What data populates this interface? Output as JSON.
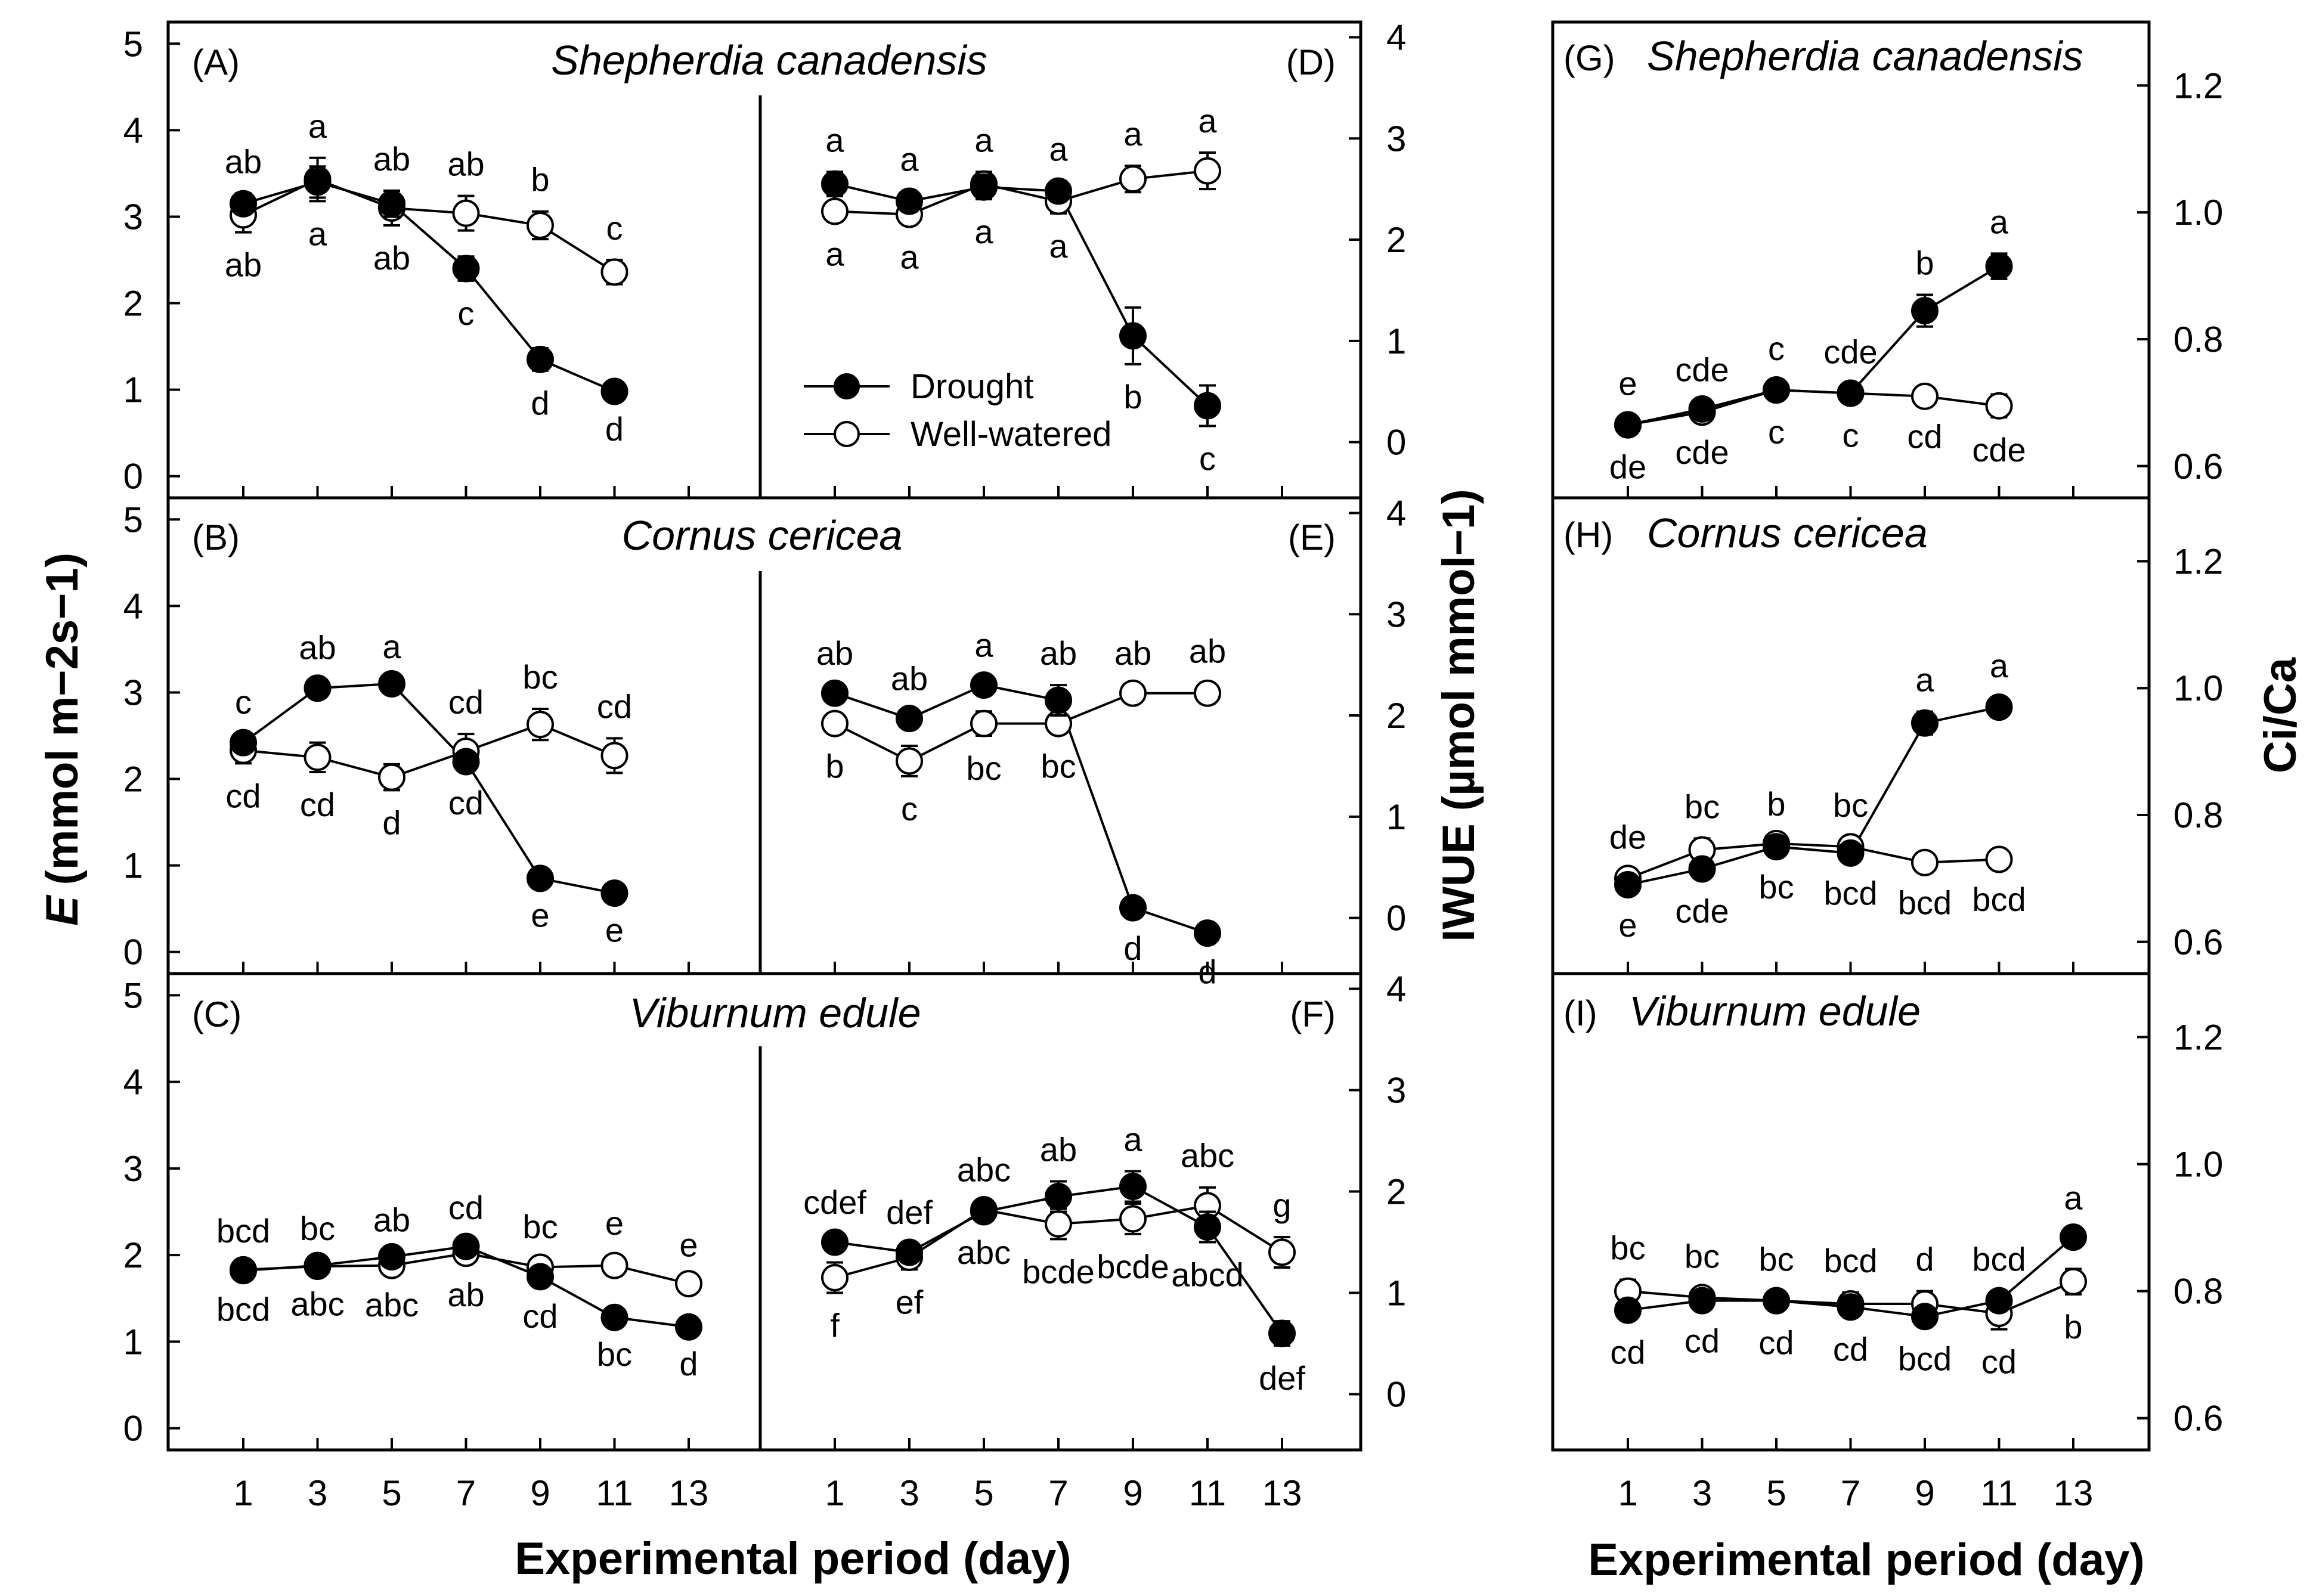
{
  "figure": {
    "xlabel": "Experimental period (day)",
    "ylabel_E_prefix": "E",
    "ylabel_E_unit": "(mmol m−2s−1)",
    "ylabel_iwue": "IWUE (µmol mmol−1)",
    "ylabel_cica": "Ci/Ca",
    "species": [
      "Shepherdia canadensis",
      "Cornus cericea",
      "Viburnum edule"
    ],
    "legend": {
      "drought": "Drought",
      "well_watered": "Well-watered"
    },
    "x_ticks": [
      "1",
      "3",
      "5",
      "7",
      "9",
      "11",
      "13"
    ],
    "e_ticks": [
      "0",
      "1",
      "2",
      "3",
      "4",
      "5"
    ],
    "iwue_ticks": [
      "0",
      "1",
      "2",
      "3",
      "4"
    ],
    "cica_ticks": [
      "0.6",
      "0.8",
      "1.0",
      "1.2"
    ]
  },
  "chart_data": [
    {
      "panel": "(A)",
      "species": "Shepherdia canadensis",
      "type": "line",
      "ylabel": "E (mmol m-2 s-1)",
      "ylim": [
        -0.25,
        5.25
      ],
      "series": [
        {
          "name": "Drought",
          "x": [
            1,
            3,
            5,
            7,
            9,
            11
          ],
          "values": [
            3.15,
            3.4,
            3.15,
            2.4,
            1.35,
            0.98
          ],
          "err": [
            0.12,
            0.18,
            0.15,
            0.14,
            0.13,
            0.06
          ],
          "labels": [
            "ab",
            "a",
            "ab",
            "c",
            "d",
            "d"
          ]
        },
        {
          "name": "Well-watered",
          "x": [
            1,
            3,
            5,
            7,
            9,
            11
          ],
          "values": [
            3.02,
            3.43,
            3.1,
            3.04,
            2.9,
            2.36
          ],
          "err": [
            0.2,
            0.25,
            0.2,
            0.2,
            0.16,
            0.14
          ],
          "labels": [
            "ab",
            "a",
            "ab",
            "ab",
            "b",
            "c"
          ]
        }
      ]
    },
    {
      "panel": "(B)",
      "species": "Cornus cericea",
      "type": "line",
      "ylabel": "E (mmol m-2 s-1)",
      "ylim": [
        -0.25,
        5.25
      ],
      "series": [
        {
          "name": "Drought",
          "x": [
            1,
            3,
            5,
            7,
            9,
            11
          ],
          "values": [
            2.42,
            3.05,
            3.1,
            2.2,
            0.85,
            0.68
          ],
          "err": [
            0.1,
            0.1,
            0.06,
            0.1,
            0.05,
            0.05
          ],
          "labels": [
            "c",
            "ab",
            "a",
            "cd",
            "e",
            "e"
          ]
        },
        {
          "name": "Well-watered",
          "x": [
            1,
            3,
            5,
            7,
            9,
            11
          ],
          "values": [
            2.33,
            2.25,
            2.02,
            2.32,
            2.63,
            2.27
          ],
          "err": [
            0.15,
            0.17,
            0.15,
            0.2,
            0.18,
            0.2
          ],
          "labels": [
            "cd",
            "cd",
            "d",
            "cd",
            "bc",
            "cd"
          ]
        }
      ]
    },
    {
      "panel": "(C)",
      "species": "Viburnum edule",
      "type": "line",
      "ylabel": "E (mmol m-2 s-1)",
      "ylim": [
        -0.25,
        5.25
      ],
      "series": [
        {
          "name": "Drought",
          "x": [
            1,
            3,
            5,
            7,
            9,
            11,
            13
          ],
          "values": [
            1.82,
            1.88,
            1.98,
            2.1,
            1.75,
            1.28,
            1.17
          ],
          "err": [
            0.06,
            0.06,
            0.06,
            0.08,
            0.08,
            0.05,
            0.05
          ],
          "labels": [
            "bcd",
            "bc",
            "ab",
            "cd",
            "bc",
            "bc",
            "d"
          ]
        },
        {
          "name": "Well-watered",
          "x": [
            1,
            3,
            5,
            7,
            9,
            11,
            13
          ],
          "values": [
            1.83,
            1.87,
            1.88,
            2.02,
            1.86,
            1.88,
            1.67
          ],
          "err": [
            0.08,
            0.06,
            0.08,
            0.1,
            0.1,
            0.12,
            0.08
          ],
          "labels": [
            "bcd",
            "abc",
            "abc",
            "ab",
            "cd",
            "e",
            "e"
          ]
        }
      ]
    },
    {
      "panel": "(D)",
      "species": "Shepherdia canadensis",
      "type": "line",
      "ylabel": "IWUE (umol mmol-1)",
      "ylim": [
        -0.55,
        4.15
      ],
      "series": [
        {
          "name": "Drought",
          "x": [
            1,
            3,
            5,
            7,
            9,
            11
          ],
          "values": [
            2.55,
            2.38,
            2.52,
            2.48,
            1.05,
            0.36
          ],
          "err": [
            0.12,
            0.1,
            0.12,
            0.1,
            0.28,
            0.2
          ],
          "labels": [
            "a",
            "a",
            "a",
            "a",
            "b",
            "c"
          ]
        },
        {
          "name": "Well-watered",
          "x": [
            1,
            3,
            5,
            7,
            9,
            11
          ],
          "values": [
            2.28,
            2.25,
            2.55,
            2.38,
            2.6,
            2.68
          ],
          "err": [
            0.1,
            0.1,
            0.12,
            0.12,
            0.13,
            0.18
          ],
          "labels": [
            "a",
            "a",
            "a",
            "a",
            "a",
            "a"
          ]
        }
      ]
    },
    {
      "panel": "(E)",
      "species": "Cornus cericea",
      "type": "line",
      "ylabel": "IWUE (umol mmol-1)",
      "ylim": [
        -0.55,
        4.15
      ],
      "series": [
        {
          "name": "Drought",
          "x": [
            1,
            3,
            5,
            7,
            9,
            11
          ],
          "values": [
            2.22,
            1.97,
            2.3,
            2.15,
            0.1,
            -0.15
          ],
          "err": [
            0.08,
            0.08,
            0.08,
            0.15,
            0.08,
            0.06
          ],
          "labels": [
            "ab",
            "ab",
            "a",
            "ab",
            "d",
            "d"
          ]
        },
        {
          "name": "Well-watered",
          "x": [
            1,
            3,
            5,
            7,
            9,
            11
          ],
          "values": [
            1.92,
            1.55,
            1.92,
            1.92,
            2.22,
            2.22
          ],
          "err": [
            0.1,
            0.15,
            0.12,
            0.1,
            0.08,
            0.1
          ],
          "labels": [
            "b",
            "c",
            "bc",
            "bc",
            "ab",
            "ab"
          ]
        }
      ]
    },
    {
      "panel": "(F)",
      "species": "Viburnum edule",
      "type": "line",
      "ylabel": "IWUE (umol mmol-1)",
      "ylim": [
        -0.55,
        4.15
      ],
      "series": [
        {
          "name": "Drought",
          "x": [
            1,
            3,
            5,
            7,
            9,
            11,
            13
          ],
          "values": [
            1.5,
            1.4,
            1.8,
            1.95,
            2.05,
            1.65,
            0.6
          ],
          "err": [
            0.08,
            0.08,
            0.08,
            0.15,
            0.15,
            0.15,
            0.12
          ],
          "labels": [
            "cdef",
            "def",
            "abc",
            "ab",
            "a",
            "abc",
            "def"
          ]
        },
        {
          "name": "Well-watered",
          "x": [
            1,
            3,
            5,
            7,
            9,
            11,
            13
          ],
          "values": [
            1.15,
            1.35,
            1.82,
            1.68,
            1.73,
            1.86,
            1.4
          ],
          "err": [
            0.15,
            0.12,
            0.08,
            0.15,
            0.15,
            0.18,
            0.15
          ],
          "labels": [
            "f",
            "ef",
            "abc",
            "bcde",
            "bcde",
            "abcd",
            "g"
          ]
        }
      ]
    },
    {
      "panel": "(G)",
      "species": "Shepherdia canadensis",
      "type": "line",
      "ylabel": "Ci/Ca",
      "ylim": [
        0.55,
        1.3
      ],
      "series": [
        {
          "name": "Drought",
          "x": [
            1,
            3,
            5,
            7,
            9,
            11
          ],
          "values": [
            0.665,
            0.69,
            0.72,
            0.715,
            0.845,
            0.915
          ],
          "err": [
            0.015,
            0.012,
            0.015,
            0.012,
            0.025,
            0.02
          ],
          "labels": [
            "e",
            "cde",
            "c",
            "cde",
            "b",
            "a"
          ]
        },
        {
          "name": "Well-watered",
          "x": [
            1,
            3,
            5,
            7,
            9,
            11
          ],
          "values": [
            0.665,
            0.685,
            0.72,
            0.715,
            0.71,
            0.695
          ],
          "err": [
            0.015,
            0.012,
            0.012,
            0.015,
            0.012,
            0.018
          ],
          "labels": [
            "de",
            "cde",
            "c",
            "c",
            "cd",
            "cde"
          ]
        }
      ]
    },
    {
      "panel": "(H)",
      "species": "Cornus cericea",
      "type": "line",
      "ylabel": "Ci/Ca",
      "ylim": [
        0.55,
        1.3
      ],
      "series": [
        {
          "name": "Drought",
          "x": [
            1,
            3,
            5,
            7,
            9,
            11
          ],
          "values": [
            0.69,
            0.715,
            0.75,
            0.74,
            0.945,
            0.97
          ],
          "err": [
            0.012,
            0.015,
            0.012,
            0.012,
            0.018,
            0.015
          ],
          "labels": [
            "de",
            "bc",
            "b",
            "bc",
            "a",
            "a"
          ]
        },
        {
          "name": "Well-watered",
          "x": [
            1,
            3,
            5,
            7,
            9,
            11
          ],
          "values": [
            0.7,
            0.745,
            0.755,
            0.75,
            0.725,
            0.73
          ],
          "err": [
            0.015,
            0.018,
            0.012,
            0.015,
            0.012,
            0.012
          ],
          "labels": [
            "e",
            "cde",
            "bc",
            "bcd",
            "bcd",
            "bcd"
          ]
        }
      ]
    },
    {
      "panel": "(I)",
      "species": "Viburnum edule",
      "type": "line",
      "ylabel": "Ci/Ca",
      "ylim": [
        0.55,
        1.3
      ],
      "series": [
        {
          "name": "Drought",
          "x": [
            1,
            3,
            5,
            7,
            9,
            11,
            13
          ],
          "values": [
            0.77,
            0.785,
            0.785,
            0.775,
            0.76,
            0.785,
            0.885
          ],
          "err": [
            0.015,
            0.012,
            0.012,
            0.015,
            0.015,
            0.015,
            0.012
          ],
          "labels": [
            "bc",
            "bc",
            "bc",
            "bcd",
            "bcd",
            "bcd",
            "a"
          ]
        },
        {
          "name": "Well-watered",
          "x": [
            1,
            3,
            5,
            7,
            9,
            11,
            13
          ],
          "values": [
            0.8,
            0.79,
            0.785,
            0.78,
            0.78,
            0.765,
            0.815
          ],
          "err": [
            0.018,
            0.015,
            0.015,
            0.018,
            0.02,
            0.025,
            0.02
          ],
          "labels": [
            "cd",
            "cd",
            "cd",
            "cd",
            "d",
            "cd",
            "b"
          ]
        }
      ]
    }
  ]
}
